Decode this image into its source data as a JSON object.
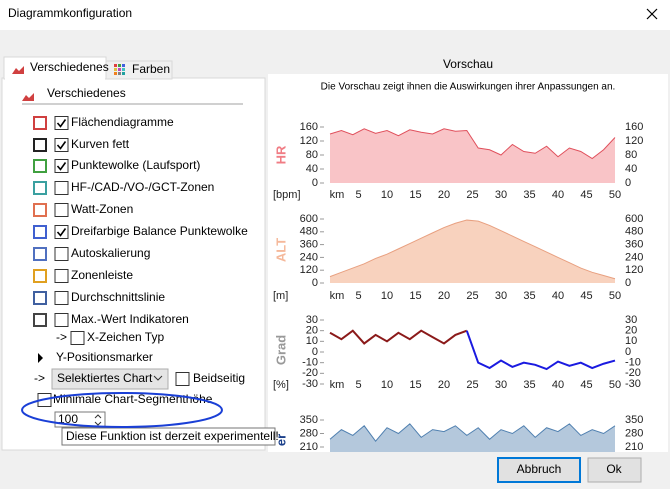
{
  "window": {
    "title": "Diagrammkonfiguration"
  },
  "tabs": [
    "Verschiedenes",
    "Farben"
  ],
  "section": "Verschiedenes",
  "options": [
    {
      "label": "Flächendiagramme",
      "checked": true
    },
    {
      "label": "Kurven fett",
      "checked": true
    },
    {
      "label": "Punktewolke (Laufsport)",
      "checked": true
    },
    {
      "label": "HF-/CAD-/VO-/GCT-Zonen",
      "checked": false
    },
    {
      "label": "Watt-Zonen",
      "checked": false
    },
    {
      "label": "Dreifarbige Balance Punktewolke",
      "checked": true
    },
    {
      "label": "Autoskalierung",
      "checked": false
    },
    {
      "label": "Zonenleiste",
      "checked": false
    },
    {
      "label": "Durchschnittslinie",
      "checked": false
    },
    {
      "label": "Max.-Wert Indikatoren",
      "checked": false
    }
  ],
  "x_marker": {
    "arrow": "->",
    "label": "X-Zeichen Typ",
    "checked": false
  },
  "y_marker": {
    "label": "Y-Positionsmarker"
  },
  "select_row": {
    "arrow": "->",
    "value": "Selektiertes Chart",
    "checkbox_label": "Beidseitig",
    "checked": false
  },
  "segment": {
    "label": "Minimale Chart-Segmenthöhe",
    "checked": false,
    "value": 100
  },
  "tooltip": "Diese Funktion ist derzeit experimentell!",
  "preview": {
    "title": "Vorschau",
    "hint": "Die Vorschau zeigt ihnen die Auswirkungen ihrer Anpassungen an.",
    "xlabel": "km",
    "xlim": [
      0,
      50
    ],
    "xticks": [
      5,
      10,
      15,
      20,
      25,
      30,
      35,
      40,
      45,
      50
    ],
    "charts": [
      {
        "label": "HR",
        "label_color": "#f07c84",
        "unit": "[bpm]",
        "ylim": [
          0,
          160
        ],
        "yticks": [
          0,
          40,
          80,
          120,
          160
        ],
        "series": [
          {
            "color": "#e0505c",
            "fill": "#f9c4c7",
            "x": [
              0,
              2,
              4,
              6,
              8,
              10,
              12,
              14,
              16,
              18,
              20,
              22,
              24,
              26,
              28,
              30,
              32,
              34,
              36,
              38,
              40,
              42,
              44,
              46,
              48,
              50
            ],
            "values": [
              140,
              150,
              138,
              155,
              142,
              150,
              135,
              152,
              145,
              140,
              155,
              148,
              150,
              100,
              95,
              80,
              110,
              90,
              85,
              105,
              75,
              100,
              90,
              70,
              95,
              130
            ]
          }
        ]
      },
      {
        "label": "ALT",
        "label_color": "#f5b89a",
        "unit": "[m]",
        "ylim": [
          0,
          600
        ],
        "yticks": [
          0,
          120,
          240,
          360,
          480,
          600
        ],
        "series": [
          {
            "color": "#e8a080",
            "fill": "#f8d2be",
            "x": [
              0,
              2,
              4,
              6,
              8,
              10,
              12,
              14,
              16,
              18,
              20,
              22,
              24,
              26,
              28,
              30,
              32,
              34,
              36,
              38,
              40,
              42,
              44,
              46,
              48,
              50
            ],
            "values": [
              60,
              100,
              140,
              180,
              230,
              270,
              320,
              370,
              420,
              470,
              520,
              560,
              590,
              580,
              540,
              490,
              440,
              390,
              340,
              290,
              240,
              190,
              140,
              100,
              70,
              40
            ]
          }
        ]
      },
      {
        "label": "Grad",
        "label_color": "#999999",
        "unit": "[%]",
        "ylim": [
          -30,
          30
        ],
        "yticks": [
          -30,
          -20,
          -10,
          0,
          10,
          20,
          30
        ],
        "series": [
          {
            "color": "#8b1a1a",
            "fill": null,
            "x": [
              0,
              2,
              4,
              6,
              8,
              10,
              12,
              14,
              16,
              18,
              20,
              22,
              24
            ],
            "values": [
              18,
              12,
              20,
              8,
              16,
              10,
              18,
              12,
              20,
              14,
              8,
              16,
              20
            ]
          },
          {
            "color": "#1a1ae0",
            "fill": null,
            "x": [
              24,
              26,
              28,
              30,
              32,
              34,
              36,
              38,
              40,
              42,
              44,
              46,
              48,
              50
            ],
            "values": [
              20,
              -10,
              -15,
              -8,
              -14,
              -10,
              -12,
              -16,
              -9,
              -13,
              -10,
              -15,
              -11,
              -8
            ]
          }
        ]
      },
      {
        "label": "er",
        "label_color": "#1a3f8a",
        "ylim": [
          140,
          350
        ],
        "yticks": [
          210,
          280,
          350
        ],
        "series": [
          {
            "color": "#5080b0",
            "fill": "#b4c8dc",
            "x": [
              0,
              2,
              4,
              6,
              8,
              10,
              12,
              14,
              16,
              18,
              20,
              22,
              24,
              26,
              28,
              30,
              32,
              34,
              36,
              38,
              40,
              42,
              44,
              46,
              48,
              50
            ],
            "values": [
              250,
              300,
              270,
              320,
              240,
              310,
              280,
              330,
              260,
              300,
              290,
              320,
              270,
              310,
              250,
              300,
              280,
              320,
              260,
              310,
              290,
              330,
              270,
              300,
              280,
              320
            ]
          }
        ]
      }
    ]
  },
  "buttons": [
    "Abbruch",
    "Ok"
  ]
}
